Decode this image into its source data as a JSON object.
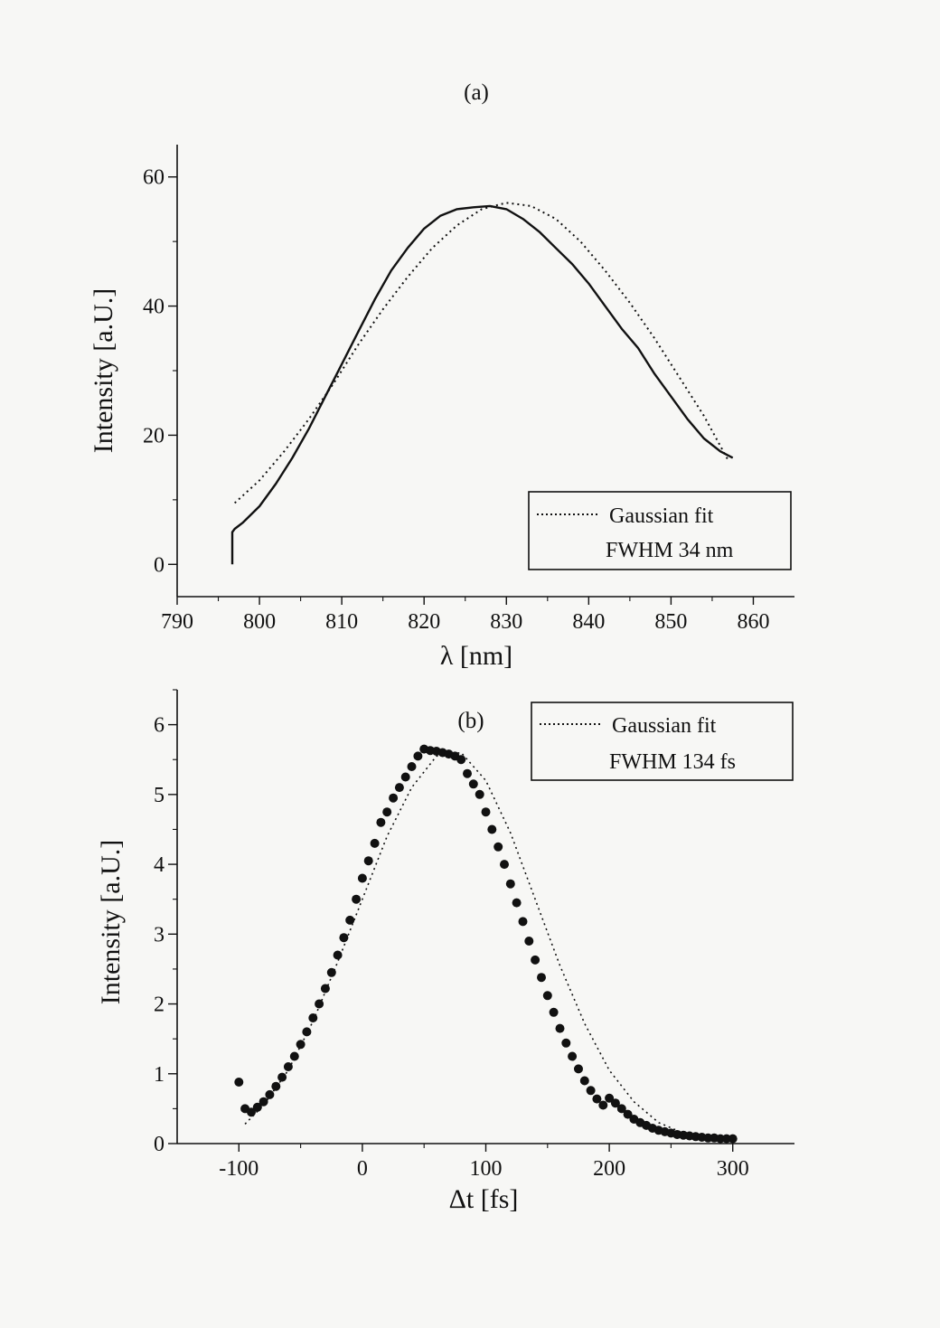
{
  "chart_data": [
    {
      "panel": "(a)",
      "type": "line",
      "xlabel": "λ [nm]",
      "ylabel": "Intensity [a.U.]",
      "xlim": [
        790,
        865
      ],
      "ylim": [
        -5,
        65
      ],
      "xticks": [
        790,
        800,
        810,
        820,
        830,
        840,
        850,
        860
      ],
      "yticks": [
        0,
        20,
        40,
        60
      ],
      "grid": false,
      "legend_position": "bottom-right",
      "legend": [
        "Gaussian fit",
        "FWHM 34 nm"
      ],
      "series": [
        {
          "style": "solid",
          "x": [
            796.7,
            796.7,
            797,
            798,
            800,
            802,
            804,
            806,
            808,
            810,
            812,
            814,
            816,
            818,
            820,
            822,
            824,
            826,
            828,
            830,
            832,
            834,
            836,
            838,
            840,
            842,
            844,
            846,
            848,
            850,
            852,
            854,
            856,
            857.5
          ],
          "y": [
            0,
            5,
            5.5,
            6.5,
            9,
            12.5,
            16.5,
            21,
            26,
            31,
            36,
            41,
            45.5,
            49,
            52,
            54,
            55,
            55.3,
            55.5,
            55,
            53.5,
            51.5,
            49,
            46.5,
            43.5,
            40,
            36.5,
            33.5,
            29.5,
            26,
            22.5,
            19.5,
            17.5,
            16.5
          ]
        },
        {
          "name": "Gaussian fit",
          "style": "dotted",
          "x": [
            797,
            800,
            803,
            806,
            809,
            812,
            815,
            818,
            821,
            824,
            827,
            830,
            833,
            836,
            839,
            842,
            845,
            848,
            851,
            854,
            857
          ],
          "y": [
            9.5,
            13,
            17.5,
            22.5,
            28,
            34,
            39.5,
            44.5,
            49,
            52.5,
            55,
            56,
            55.5,
            53.5,
            50,
            45.5,
            40.5,
            35,
            29,
            23,
            16
          ]
        }
      ]
    },
    {
      "panel": "(b)",
      "type": "scatter",
      "xlabel": "Δt [fs]",
      "ylabel": "Intensity [a.U.]",
      "xlim": [
        -150,
        350
      ],
      "ylim": [
        0,
        6.5
      ],
      "xticks": [
        -100,
        0,
        100,
        200,
        300
      ],
      "yticks": [
        0,
        1,
        2,
        3,
        4,
        5,
        6
      ],
      "grid": false,
      "legend_position": "top-right",
      "legend": [
        "Gaussian fit",
        "FWHM 134 fs"
      ],
      "points": {
        "x": [
          -100,
          -95,
          -90,
          -85,
          -80,
          -75,
          -70,
          -65,
          -60,
          -55,
          -50,
          -45,
          -40,
          -35,
          -30,
          -25,
          -20,
          -15,
          -10,
          -5,
          0,
          5,
          10,
          15,
          20,
          25,
          30,
          35,
          40,
          45,
          50,
          55,
          60,
          65,
          70,
          75,
          80,
          85,
          90,
          95,
          100,
          105,
          110,
          115,
          120,
          125,
          130,
          135,
          140,
          145,
          150,
          155,
          160,
          165,
          170,
          175,
          180,
          185,
          190,
          195,
          200,
          205,
          210,
          215,
          220,
          225,
          230,
          235,
          240,
          245,
          250,
          255,
          260,
          265,
          270,
          275,
          280,
          285,
          290,
          295,
          300
        ],
        "y": [
          0.88,
          0.5,
          0.45,
          0.52,
          0.6,
          0.7,
          0.82,
          0.95,
          1.1,
          1.25,
          1.42,
          1.6,
          1.8,
          2.0,
          2.22,
          2.45,
          2.7,
          2.95,
          3.2,
          3.5,
          3.8,
          4.05,
          4.3,
          4.6,
          4.75,
          4.95,
          5.1,
          5.25,
          5.4,
          5.55,
          5.65,
          5.63,
          5.62,
          5.6,
          5.58,
          5.55,
          5.5,
          5.3,
          5.15,
          5.0,
          4.75,
          4.5,
          4.25,
          4.0,
          3.72,
          3.45,
          3.18,
          2.9,
          2.63,
          2.38,
          2.12,
          1.88,
          1.65,
          1.44,
          1.25,
          1.07,
          0.9,
          0.76,
          0.64,
          0.55,
          0.65,
          0.58,
          0.5,
          0.42,
          0.35,
          0.3,
          0.26,
          0.22,
          0.19,
          0.17,
          0.15,
          0.13,
          0.12,
          0.11,
          0.1,
          0.09,
          0.08,
          0.08,
          0.07,
          0.07,
          0.07
        ]
      },
      "fit": {
        "name": "Gaussian fit",
        "style": "dotted",
        "x": [
          -95,
          -80,
          -60,
          -40,
          -20,
          0,
          20,
          40,
          60,
          80,
          100,
          120,
          140,
          160,
          180,
          200,
          220,
          240,
          260,
          280,
          300
        ],
        "y": [
          0.28,
          0.55,
          1.05,
          1.75,
          2.6,
          3.5,
          4.4,
          5.1,
          5.55,
          5.6,
          5.2,
          4.45,
          3.5,
          2.55,
          1.72,
          1.05,
          0.6,
          0.3,
          0.15,
          0.07,
          0.03
        ]
      }
    }
  ]
}
